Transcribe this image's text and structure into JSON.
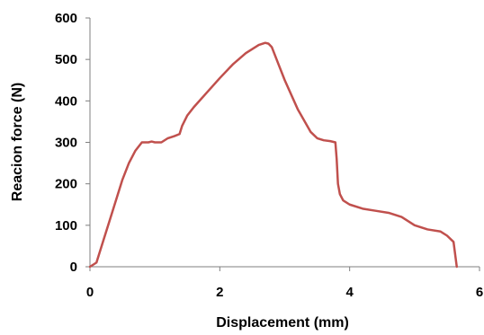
{
  "chart_data": {
    "type": "line",
    "title": "",
    "xlabel": "Displacement (mm)",
    "ylabel": "Reacion force (N)",
    "xlim": [
      0,
      6
    ],
    "ylim": [
      0,
      600
    ],
    "xticks": [
      0,
      2,
      4,
      6
    ],
    "yticks": [
      0,
      100,
      200,
      300,
      400,
      500,
      600
    ],
    "grid": false,
    "legend": "none",
    "series": [
      {
        "color": "#c0504d",
        "x": [
          0,
          0.1,
          0.2,
          0.3,
          0.4,
          0.5,
          0.6,
          0.7,
          0.8,
          0.9,
          0.95,
          1.0,
          1.1,
          1.2,
          1.3,
          1.38,
          1.42,
          1.5,
          1.6,
          1.8,
          2.0,
          2.2,
          2.4,
          2.6,
          2.7,
          2.75,
          2.8,
          2.9,
          3.0,
          3.2,
          3.4,
          3.5,
          3.6,
          3.7,
          3.78,
          3.8,
          3.82,
          3.85,
          3.9,
          4.0,
          4.2,
          4.4,
          4.6,
          4.8,
          5.0,
          5.2,
          5.4,
          5.5,
          5.6,
          5.65
        ],
        "y": [
          0,
          10,
          60,
          110,
          160,
          210,
          250,
          280,
          300,
          300,
          302,
          300,
          300,
          310,
          315,
          320,
          340,
          365,
          385,
          420,
          455,
          488,
          515,
          535,
          540,
          538,
          530,
          490,
          450,
          380,
          325,
          310,
          305,
          303,
          300,
          260,
          200,
          175,
          160,
          150,
          140,
          135,
          130,
          120,
          100,
          90,
          85,
          75,
          60,
          0
        ]
      }
    ]
  }
}
